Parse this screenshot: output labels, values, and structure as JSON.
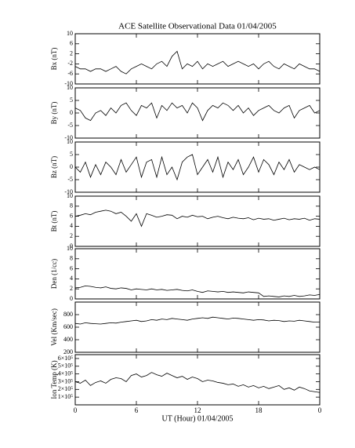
{
  "title": "ACE Satellite Observational Data   01/04/2005",
  "xlabel": "UT (Hour)  01/04/2005",
  "chart_data": [
    {
      "type": "line",
      "ylabel": "Bx (nT)",
      "color": "#000000",
      "xlim": [
        0,
        24
      ],
      "xticks": [
        0,
        6,
        12,
        18,
        24
      ],
      "ylim": [
        -10,
        10
      ],
      "yticks": [
        10,
        6,
        2,
        -2,
        -6,
        -10
      ],
      "x": [
        0,
        0.5,
        1,
        1.5,
        2,
        2.5,
        3,
        3.5,
        4,
        4.5,
        5,
        5.5,
        6,
        6.5,
        7,
        7.5,
        8,
        8.5,
        9,
        9.5,
        10,
        10.5,
        11,
        11.5,
        12,
        12.5,
        13,
        13.5,
        14,
        14.5,
        15,
        15.5,
        16,
        16.5,
        17,
        17.5,
        18,
        18.5,
        19,
        19.5,
        20,
        20.5,
        21,
        21.5,
        22,
        22.5,
        23,
        23.5,
        24
      ],
      "values": [
        -3,
        -4,
        -4,
        -5,
        -4,
        -4,
        -5,
        -4,
        -3,
        -5,
        -6,
        -4,
        -3,
        -2,
        -3,
        -4,
        -2,
        -1,
        -3,
        1,
        3,
        -4,
        -2,
        -3,
        -1,
        -4,
        -2,
        -3,
        -2,
        -1,
        -3,
        -2,
        -1,
        -2,
        -3,
        -2,
        -4,
        -2,
        -1,
        -3,
        -4,
        -2,
        -3,
        -4,
        -2,
        -3,
        -4,
        -4,
        -5
      ]
    },
    {
      "type": "line",
      "ylabel": "By (nT)",
      "color": "#000000",
      "xlim": [
        0,
        24
      ],
      "xticks": [
        0,
        6,
        12,
        18,
        24
      ],
      "ylim": [
        -10,
        10
      ],
      "yticks": [
        10,
        5,
        0,
        -5,
        -10
      ],
      "x": [
        0,
        0.5,
        1,
        1.5,
        2,
        2.5,
        3,
        3.5,
        4,
        4.5,
        5,
        5.5,
        6,
        6.5,
        7,
        7.5,
        8,
        8.5,
        9,
        9.5,
        10,
        10.5,
        11,
        11.5,
        12,
        12.5,
        13,
        13.5,
        14,
        14.5,
        15,
        15.5,
        16,
        16.5,
        17,
        17.5,
        18,
        18.5,
        19,
        19.5,
        20,
        20.5,
        21,
        21.5,
        22,
        22.5,
        23,
        23.5,
        24
      ],
      "values": [
        2,
        1,
        -2,
        -3,
        0,
        1,
        -1,
        2,
        0,
        3,
        4,
        1,
        -1,
        3,
        2,
        4,
        -2,
        3,
        1,
        4,
        2,
        3,
        0,
        4,
        2,
        -3,
        1,
        3,
        2,
        4,
        3,
        1,
        3,
        0,
        2,
        -1,
        1,
        2,
        3,
        1,
        0,
        2,
        3,
        -2,
        1,
        2,
        3,
        0,
        1
      ]
    },
    {
      "type": "line",
      "ylabel": "Bz (nT)",
      "color": "#000000",
      "xlim": [
        0,
        24
      ],
      "xticks": [
        0,
        6,
        12,
        18,
        24
      ],
      "ylim": [
        -10,
        10
      ],
      "yticks": [
        10,
        5,
        0,
        -5,
        -10
      ],
      "x": [
        0,
        0.5,
        1,
        1.5,
        2,
        2.5,
        3,
        3.5,
        4,
        4.5,
        5,
        5.5,
        6,
        6.5,
        7,
        7.5,
        8,
        8.5,
        9,
        9.5,
        10,
        10.5,
        11,
        11.5,
        12,
        12.5,
        13,
        13.5,
        14,
        14.5,
        15,
        15.5,
        16,
        16.5,
        17,
        17.5,
        18,
        18.5,
        19,
        19.5,
        20,
        20.5,
        21,
        21.5,
        22,
        22.5,
        23,
        23.5,
        24
      ],
      "values": [
        0,
        -2,
        2,
        -4,
        1,
        -3,
        2,
        0,
        -3,
        3,
        -2,
        1,
        4,
        -4,
        2,
        3,
        -4,
        4,
        -3,
        0,
        -5,
        2,
        4,
        5,
        -3,
        0,
        3,
        -2,
        4,
        -4,
        2,
        -1,
        3,
        -3,
        0,
        4,
        -2,
        3,
        1,
        -3,
        2,
        -1,
        3,
        -2,
        1,
        0,
        -1,
        0,
        -1
      ]
    },
    {
      "type": "line",
      "ylabel": "Bt (nT)",
      "color": "#000000",
      "xlim": [
        0,
        24
      ],
      "xticks": [
        0,
        6,
        12,
        18,
        24
      ],
      "ylim": [
        0,
        10
      ],
      "yticks": [
        10,
        8,
        6,
        4,
        2,
        0
      ],
      "x": [
        0,
        0.5,
        1,
        1.5,
        2,
        2.5,
        3,
        3.5,
        4,
        4.5,
        5,
        5.5,
        6,
        6.5,
        7,
        7.5,
        8,
        8.5,
        9,
        9.5,
        10,
        10.5,
        11,
        11.5,
        12,
        12.5,
        13,
        13.5,
        14,
        14.5,
        15,
        15.5,
        16,
        16.5,
        17,
        17.5,
        18,
        18.5,
        19,
        19.5,
        20,
        20.5,
        21,
        21.5,
        22,
        22.5,
        23,
        23.5,
        24
      ],
      "values": [
        6,
        6.2,
        6.5,
        6.3,
        6.8,
        7,
        7.2,
        7,
        6.5,
        6.8,
        6,
        5,
        6.5,
        4,
        6.5,
        6.2,
        5.8,
        6,
        6.3,
        6.2,
        5.5,
        6,
        5.8,
        6.2,
        5.9,
        6,
        5.5,
        5.8,
        6,
        5.7,
        5.5,
        5.8,
        5.6,
        5.5,
        5.7,
        5.3,
        5.6,
        5.4,
        5.5,
        5.2,
        5.4,
        5.6,
        5.3,
        5.5,
        5.4,
        5.6,
        5.2,
        5.5,
        5.4
      ]
    },
    {
      "type": "line",
      "ylabel": "Den (1/cc)",
      "color": "#000000",
      "xlim": [
        0,
        24
      ],
      "xticks": [
        0,
        6,
        12,
        18,
        24
      ],
      "ylim": [
        0,
        10
      ],
      "yticks": [
        10,
        8,
        6,
        4,
        2,
        0
      ],
      "x": [
        0,
        0.5,
        1,
        1.5,
        2,
        2.5,
        3,
        3.5,
        4,
        4.5,
        5,
        5.5,
        6,
        6.5,
        7,
        7.5,
        8,
        8.5,
        9,
        9.5,
        10,
        10.5,
        11,
        11.5,
        12,
        12.5,
        13,
        13.5,
        14,
        14.5,
        15,
        15.5,
        16,
        16.5,
        17,
        17.5,
        18,
        18.5,
        19,
        19.5,
        20,
        20.5,
        21,
        21.5,
        22,
        22.5,
        23,
        23.5,
        24
      ],
      "values": [
        2.2,
        2.3,
        2.6,
        2.5,
        2.3,
        2.2,
        2.4,
        2.1,
        2,
        2.2,
        2.1,
        1.8,
        2,
        1.9,
        1.8,
        2,
        1.8,
        1.9,
        1.7,
        1.8,
        1.9,
        1.7,
        1.6,
        1.8,
        1.5,
        1.3,
        1.6,
        1.5,
        1.4,
        1.5,
        1.3,
        1.4,
        1.3,
        1.2,
        1.4,
        1.3,
        1.2,
        0.5,
        0.6,
        0.5,
        0.4,
        0.6,
        0.5,
        0.7,
        0.5,
        0.6,
        0.8,
        0.7,
        0.9
      ]
    },
    {
      "type": "line",
      "ylabel": "Vel (Km/sec)",
      "color": "#000000",
      "xlim": [
        0,
        24
      ],
      "xticks": [
        0,
        6,
        12,
        18,
        24
      ],
      "ylim": [
        200,
        1000
      ],
      "yticks": [
        800,
        600,
        400,
        200
      ],
      "x": [
        0,
        0.5,
        1,
        1.5,
        2,
        2.5,
        3,
        3.5,
        4,
        4.5,
        5,
        5.5,
        6,
        6.5,
        7,
        7.5,
        8,
        8.5,
        9,
        9.5,
        10,
        10.5,
        11,
        11.5,
        12,
        12.5,
        13,
        13.5,
        14,
        14.5,
        15,
        15.5,
        16,
        16.5,
        17,
        17.5,
        18,
        18.5,
        19,
        19.5,
        20,
        20.5,
        21,
        21.5,
        22,
        22.5,
        23,
        23.5,
        24
      ],
      "values": [
        660,
        650,
        670,
        660,
        655,
        650,
        660,
        670,
        665,
        680,
        690,
        700,
        710,
        690,
        700,
        720,
        710,
        730,
        720,
        740,
        730,
        720,
        710,
        730,
        740,
        750,
        740,
        760,
        750,
        740,
        730,
        745,
        740,
        730,
        720,
        710,
        720,
        715,
        700,
        710,
        705,
        690,
        700,
        695,
        710,
        700,
        690,
        680,
        680
      ]
    },
    {
      "type": "line",
      "ylabel": "Ion Temp (K)",
      "color": "#000000",
      "xlim": [
        0,
        24
      ],
      "xticks": [
        0,
        6,
        12,
        18,
        {
          "value": 24,
          "label": "0"
        }
      ],
      "ylim": [
        0,
        650000
      ],
      "yticks": [
        {
          "value": 600000,
          "label": "6×10⁵"
        },
        {
          "value": 500000,
          "label": "5×10⁵"
        },
        {
          "value": 400000,
          "label": "4×10⁵"
        },
        {
          "value": 300000,
          "label": "3×10⁵"
        },
        {
          "value": 200000,
          "label": "2×10⁵"
        },
        {
          "value": 100000,
          "label": "1×10⁵"
        }
      ],
      "x": [
        0,
        0.5,
        1,
        1.5,
        2,
        2.5,
        3,
        3.5,
        4,
        4.5,
        5,
        5.5,
        6,
        6.5,
        7,
        7.5,
        8,
        8.5,
        9,
        9.5,
        10,
        10.5,
        11,
        11.5,
        12,
        12.5,
        13,
        13.5,
        14,
        14.5,
        15,
        15.5,
        16,
        16.5,
        17,
        17.5,
        18,
        18.5,
        19,
        19.5,
        20,
        20.5,
        21,
        21.5,
        22,
        22.5,
        23,
        23.5,
        24
      ],
      "values": [
        300000,
        280000,
        320000,
        250000,
        290000,
        310000,
        280000,
        330000,
        350000,
        340000,
        300000,
        380000,
        400000,
        360000,
        380000,
        420000,
        390000,
        370000,
        410000,
        380000,
        350000,
        370000,
        330000,
        360000,
        340000,
        300000,
        320000,
        310000,
        290000,
        280000,
        260000,
        270000,
        240000,
        260000,
        230000,
        250000,
        220000,
        240000,
        210000,
        230000,
        250000,
        200000,
        220000,
        190000,
        230000,
        210000,
        180000,
        170000,
        160000
      ]
    }
  ]
}
